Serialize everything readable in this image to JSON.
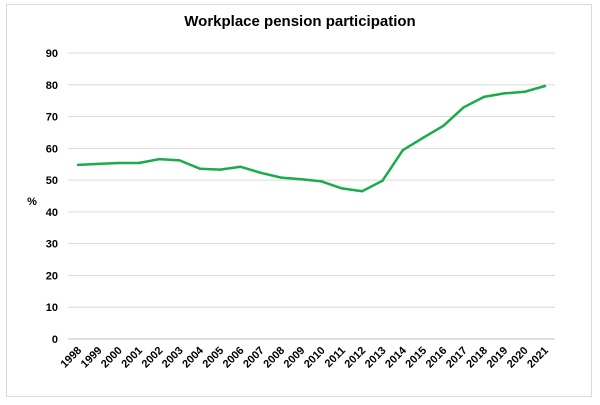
{
  "chart_data": {
    "type": "line",
    "title": "Workplace pension participation",
    "xlabel": "",
    "ylabel": "%",
    "ylim": [
      0,
      90
    ],
    "yticks": [
      0,
      10,
      20,
      30,
      40,
      50,
      60,
      70,
      80,
      90
    ],
    "grid": true,
    "legend": "none",
    "colors": {
      "line": "#1aab4b",
      "grid": "#d9d9d9",
      "axis": "#bfbfbf"
    },
    "categories": [
      "1998",
      "1999",
      "2000",
      "2001",
      "2002",
      "2003",
      "2004",
      "2005",
      "2006",
      "2007",
      "2008",
      "2009",
      "2010",
      "2011",
      "2012",
      "2013",
      "2014",
      "2015",
      "2016",
      "2017",
      "2018",
      "2019",
      "2020",
      "2021"
    ],
    "series": [
      {
        "values": [
          54.8,
          55.1,
          55.4,
          55.4,
          56.6,
          56.2,
          53.6,
          53.3,
          54.2,
          52.3,
          50.8,
          50.3,
          49.6,
          47.4,
          46.5,
          49.8,
          59.4,
          63.3,
          67.1,
          72.9,
          76.2,
          77.3,
          77.8,
          79.6
        ]
      }
    ]
  }
}
